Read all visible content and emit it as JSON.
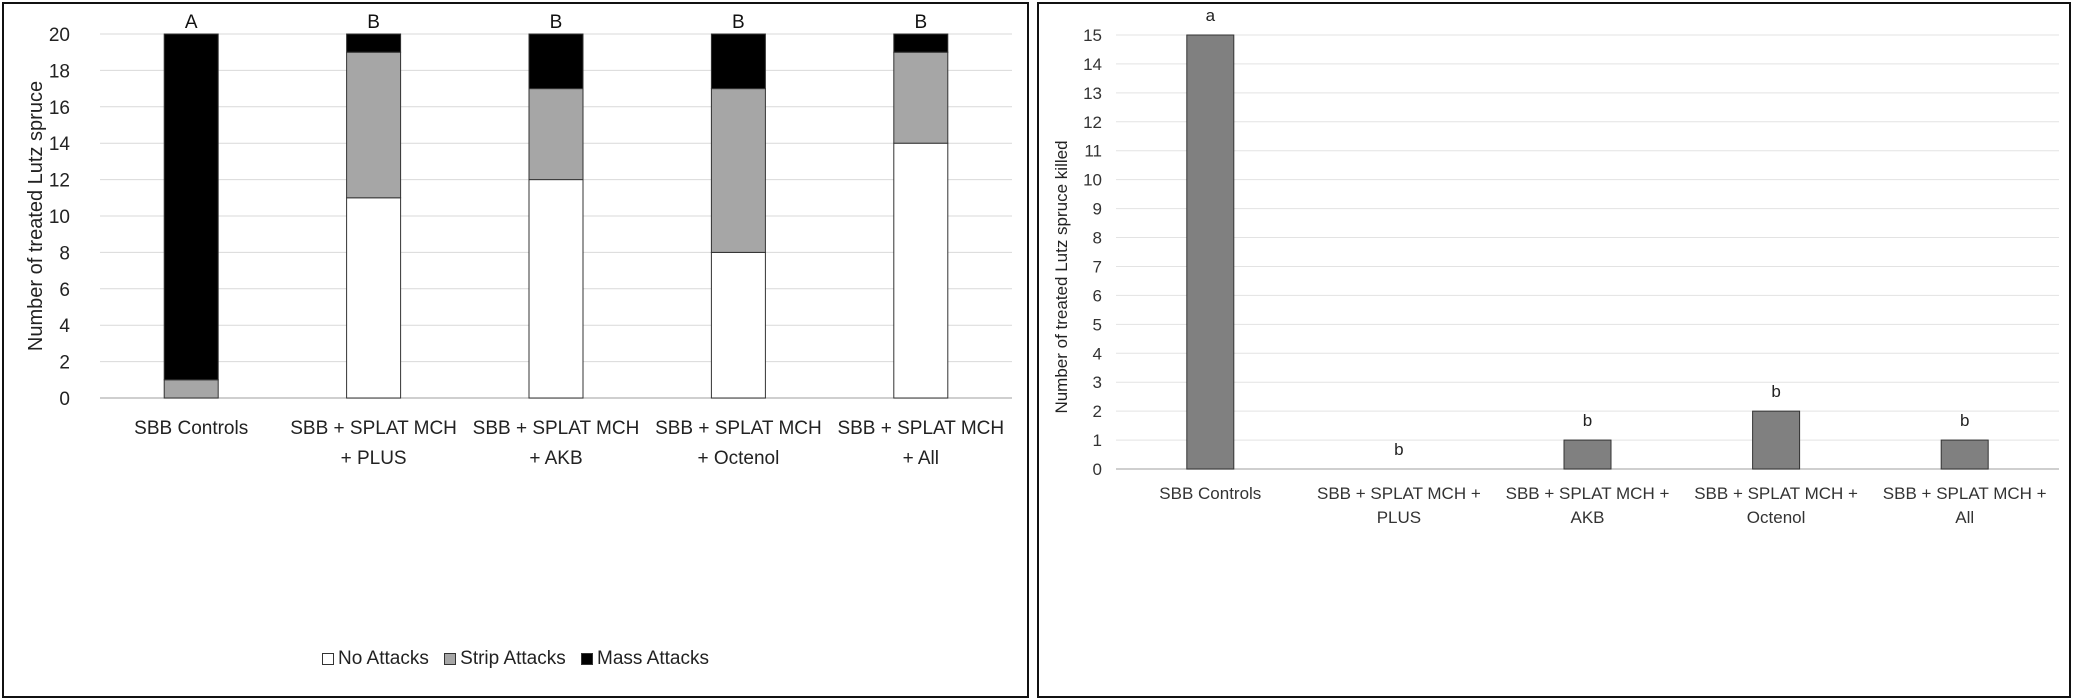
{
  "chart_data": [
    {
      "type": "bar",
      "stacked": true,
      "categories": [
        [
          "SBB Controls"
        ],
        [
          "SBB + SPLAT MCH",
          "+ PLUS"
        ],
        [
          "SBB + SPLAT MCH",
          "+ AKB"
        ],
        [
          "SBB + SPLAT MCH",
          "+ Octenol"
        ],
        [
          "SBB + SPLAT MCH",
          "+ All"
        ]
      ],
      "series": [
        {
          "name": "No Attacks",
          "color": "#ffffff",
          "values": [
            0,
            11,
            12,
            8,
            14
          ]
        },
        {
          "name": "Strip Attacks",
          "color": "#a6a6a6",
          "values": [
            1,
            8,
            5,
            9,
            5
          ]
        },
        {
          "name": "Mass Attacks",
          "color": "#000000",
          "values": [
            19,
            1,
            3,
            3,
            1
          ]
        }
      ],
      "significance_letters": [
        "A",
        "B",
        "B",
        "B",
        "B"
      ],
      "ylabel": "Number of treated Lutz spruce",
      "xlabel": "",
      "ylim": [
        0,
        20
      ],
      "yticks": [
        0,
        2,
        4,
        6,
        8,
        10,
        12,
        14,
        16,
        18,
        20
      ],
      "grid": true,
      "legend": "bottom"
    },
    {
      "type": "bar",
      "categories": [
        [
          "SBB Controls"
        ],
        [
          "SBB + SPLAT MCH +",
          "PLUS"
        ],
        [
          "SBB + SPLAT MCH +",
          "AKB"
        ],
        [
          "SBB + SPLAT MCH +",
          "Octenol"
        ],
        [
          "SBB + SPLAT MCH +",
          "All"
        ]
      ],
      "series": [
        {
          "name": "Killed",
          "color": "#808080",
          "values": [
            15,
            0,
            1,
            2,
            1
          ]
        }
      ],
      "significance_letters": [
        "a",
        "b",
        "b",
        "b",
        "b"
      ],
      "ylabel": "Number of treated Lutz spruce killed",
      "xlabel": "",
      "ylim": [
        0,
        15
      ],
      "yticks": [
        0,
        1,
        2,
        3,
        4,
        5,
        6,
        7,
        8,
        9,
        10,
        11,
        12,
        13,
        14,
        15
      ],
      "grid": true,
      "legend": "none"
    }
  ]
}
